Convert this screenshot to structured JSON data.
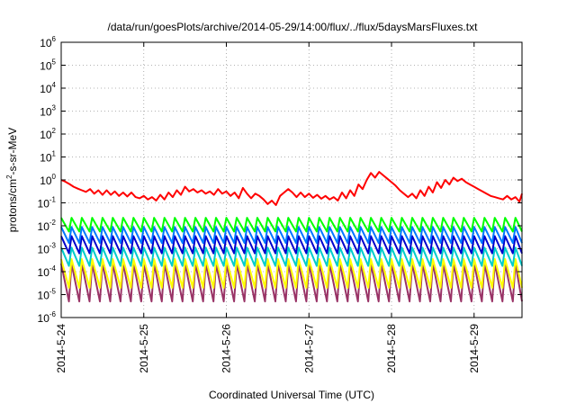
{
  "chart_data": {
    "type": "line",
    "title": "/data/run/goesPlots/archive/2014-05-29/14:00/flux/../flux/5daysMarsFluxes.txt",
    "xlabel": "Coordinated Universal Time (UTC)",
    "ylabel_parts": [
      "protons/cm",
      "2",
      "-s-sr-MeV"
    ],
    "yscale": "log",
    "ylim_exp": [
      -6,
      6
    ],
    "y_ticks": [
      {
        "base": "10",
        "exp": "-6",
        "e": -6
      },
      {
        "base": "10",
        "exp": "-5",
        "e": -5
      },
      {
        "base": "10",
        "exp": "-4",
        "e": -4
      },
      {
        "base": "10",
        "exp": "-3",
        "e": -3
      },
      {
        "base": "10",
        "exp": "-2",
        "e": -2
      },
      {
        "base": "10",
        "exp": "-1",
        "e": -1
      },
      {
        "base": "10",
        "exp": "0",
        "e": 0
      },
      {
        "base": "10",
        "exp": "1",
        "e": 1
      },
      {
        "base": "10",
        "exp": "2",
        "e": 2
      },
      {
        "base": "10",
        "exp": "3",
        "e": 3
      },
      {
        "base": "10",
        "exp": "4",
        "e": 4
      },
      {
        "base": "10",
        "exp": "5",
        "e": 5
      },
      {
        "base": "10",
        "exp": "6",
        "e": 6
      }
    ],
    "x_ticks": [
      {
        "label": "2014-5-24",
        "day": 24
      },
      {
        "label": "2014-5-25",
        "day": 25
      },
      {
        "label": "2014-5-26",
        "day": 26
      },
      {
        "label": "2014-5-27",
        "day": 27
      },
      {
        "label": "2014-5-28",
        "day": 28
      },
      {
        "label": "2014-5-29",
        "day": 29
      }
    ],
    "xlim_day": [
      24.0,
      29.58
    ],
    "grid": true,
    "legend": "none",
    "series": [
      {
        "color": "#ff0000",
        "x": [
          24.0,
          24.05,
          24.1,
          24.15,
          24.2,
          24.25,
          24.3,
          24.35,
          24.4,
          24.45,
          24.5,
          24.55,
          24.6,
          24.65,
          24.7,
          24.75,
          24.8,
          24.85,
          24.9,
          24.95,
          25.0,
          25.05,
          25.1,
          25.15,
          25.2,
          25.25,
          25.3,
          25.35,
          25.4,
          25.45,
          25.5,
          25.55,
          25.6,
          25.65,
          25.7,
          25.75,
          25.8,
          25.85,
          25.9,
          25.95,
          26.0,
          26.05,
          26.1,
          26.15,
          26.2,
          26.25,
          26.3,
          26.35,
          26.4,
          26.45,
          26.5,
          26.55,
          26.6,
          26.65,
          26.7,
          26.75,
          26.8,
          26.85,
          26.9,
          26.95,
          27.0,
          27.05,
          27.1,
          27.15,
          27.2,
          27.25,
          27.3,
          27.35,
          27.4,
          27.45,
          27.5,
          27.55,
          27.6,
          27.65,
          27.7,
          27.75,
          27.8,
          27.85,
          27.9,
          27.95,
          28.0,
          28.05,
          28.1,
          28.15,
          28.2,
          28.25,
          28.3,
          28.35,
          28.4,
          28.45,
          28.5,
          28.55,
          28.6,
          28.65,
          28.7,
          28.75,
          28.8,
          28.85,
          28.9,
          28.95,
          29.0,
          29.05,
          29.1,
          29.15,
          29.2,
          29.25,
          29.3,
          29.35,
          29.4,
          29.45,
          29.5,
          29.55,
          29.58
        ],
        "log10_y": [
          0.0,
          -0.08,
          -0.18,
          -0.3,
          -0.38,
          -0.45,
          -0.52,
          -0.4,
          -0.6,
          -0.45,
          -0.65,
          -0.45,
          -0.65,
          -0.5,
          -0.7,
          -0.55,
          -0.72,
          -0.55,
          -0.75,
          -0.8,
          -0.7,
          -0.85,
          -0.75,
          -0.9,
          -0.65,
          -0.85,
          -0.55,
          -0.75,
          -0.45,
          -0.65,
          -0.3,
          -0.5,
          -0.4,
          -0.55,
          -0.45,
          -0.6,
          -0.5,
          -0.65,
          -0.4,
          -0.6,
          -0.5,
          -0.7,
          -0.55,
          -0.8,
          -0.35,
          -0.6,
          -0.8,
          -0.6,
          -0.7,
          -0.85,
          -1.05,
          -0.9,
          -1.1,
          -0.7,
          -0.55,
          -0.4,
          -0.55,
          -0.75,
          -0.55,
          -0.75,
          -0.6,
          -0.78,
          -0.65,
          -0.82,
          -0.7,
          -0.85,
          -0.75,
          -0.9,
          -0.55,
          -0.8,
          -0.45,
          -0.7,
          -0.2,
          -0.4,
          0.0,
          0.3,
          0.1,
          0.35,
          0.2,
          0.05,
          -0.1,
          -0.25,
          -0.45,
          -0.6,
          -0.75,
          -0.6,
          -0.8,
          -0.45,
          -0.7,
          -0.3,
          -0.55,
          -0.1,
          -0.35,
          0.0,
          -0.2,
          0.1,
          -0.05,
          0.05,
          -0.1,
          -0.2,
          -0.3,
          -0.4,
          -0.5,
          -0.6,
          -0.7,
          -0.75,
          -0.8,
          -0.85,
          -0.7,
          -0.85,
          -0.75,
          -0.95,
          -0.6
        ]
      },
      {
        "color": "#00ff00",
        "pattern": "sawtooth",
        "log10_hi": -1.65,
        "log10_lo": -2.25,
        "period_days": 0.125
      },
      {
        "color": "#0077ff",
        "pattern": "sawtooth",
        "log10_hi": -2.05,
        "log10_lo": -2.75,
        "period_days": 0.125
      },
      {
        "color": "#0000cc",
        "pattern": "sawtooth",
        "log10_hi": -2.45,
        "log10_lo": -3.2,
        "period_days": 0.125
      },
      {
        "color": "#00cccc",
        "pattern": "sawtooth",
        "log10_hi": -2.95,
        "log10_lo": -3.75,
        "period_days": 0.125
      },
      {
        "color": "#ffff00",
        "pattern": "sawtooth",
        "log10_hi": -3.45,
        "log10_lo": -4.7,
        "period_days": 0.125
      },
      {
        "color": "#993366",
        "pattern": "sawtooth",
        "log10_hi": -3.65,
        "log10_lo": -5.3,
        "period_days": 0.125
      }
    ]
  }
}
